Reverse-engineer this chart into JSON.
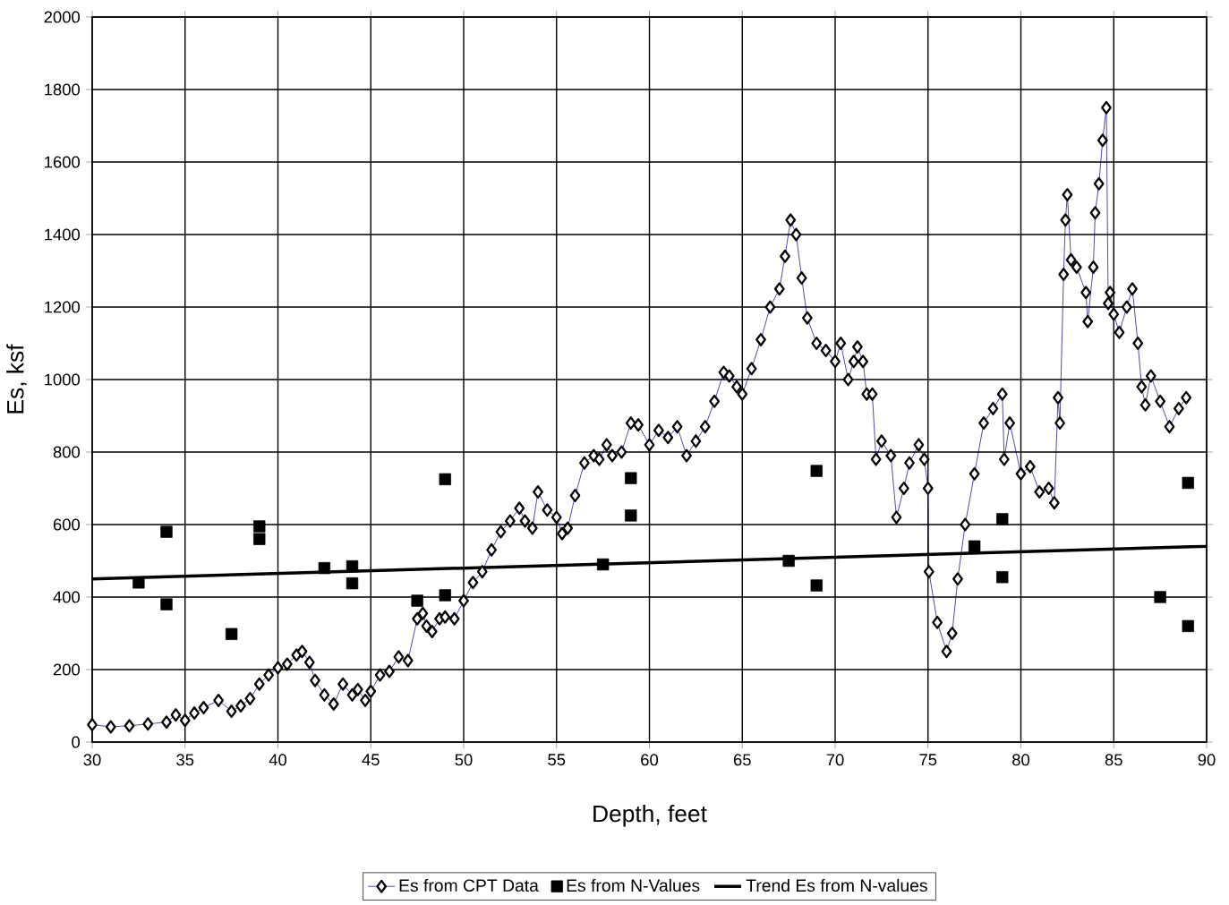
{
  "chart_data": {
    "type": "line",
    "xlabel": "Depth, feet",
    "ylabel": "Es, ksf",
    "xlim": [
      30,
      90
    ],
    "xticks": [
      30,
      35,
      40,
      45,
      50,
      55,
      60,
      65,
      70,
      75,
      80,
      85,
      90
    ],
    "ylim": [
      0,
      2000
    ],
    "yticks": [
      0,
      200,
      400,
      600,
      800,
      1000,
      1200,
      1400,
      1600,
      1800,
      2000
    ],
    "grid": true,
    "legend": "bottom",
    "series": [
      {
        "name": "Es from CPT Data",
        "type": "line",
        "marker": "diamond",
        "color": "#000000",
        "x": [
          30,
          31,
          32,
          33,
          34,
          34.5,
          35,
          35.5,
          36,
          36.8,
          37.5,
          38,
          38.5,
          39,
          39.5,
          40,
          40.5,
          41,
          41.3,
          41.7,
          42,
          42.5,
          43,
          43.5,
          44,
          44.3,
          44.7,
          45,
          45.5,
          46,
          46.5,
          47,
          47.5,
          47.8,
          48,
          48.3,
          48.7,
          49,
          49.5,
          50,
          50.5,
          51,
          51.5,
          52,
          52.5,
          53,
          53.3,
          53.7,
          54,
          54.5,
          55,
          55.3,
          55.6,
          56,
          56.5,
          57,
          57.3,
          57.7,
          58,
          58.5,
          59,
          59.4,
          60,
          60.5,
          61,
          61.5,
          62,
          62.5,
          63,
          63.5,
          64,
          64.3,
          64.7,
          65,
          65.5,
          66,
          66.5,
          67,
          67.3,
          67.6,
          67.9,
          68.2,
          68.5,
          69,
          69.5,
          70,
          70.3,
          70.7,
          71,
          71.2,
          71.5,
          71.7,
          72,
          72.2,
          72.5,
          73,
          73.3,
          73.7,
          74,
          74.5,
          74.8,
          75,
          75.05,
          75.5,
          76,
          76.3,
          76.6,
          77,
          77.5,
          78,
          78.5,
          79,
          79.1,
          79.4,
          80,
          80.5,
          81,
          81.5,
          81.8,
          82,
          82.1,
          82.3,
          82.4,
          82.5,
          82.7,
          83,
          83.5,
          83.6,
          83.9,
          84,
          84.2,
          84.4,
          84.6,
          84.7,
          84.8,
          85,
          85.3,
          85.7,
          86,
          86.3,
          86.5,
          86.7,
          87,
          87.5,
          88,
          88.5,
          88.9
        ],
        "values": [
          48,
          42,
          45,
          50,
          55,
          75,
          60,
          80,
          95,
          115,
          85,
          100,
          120,
          160,
          185,
          205,
          215,
          240,
          250,
          220,
          170,
          130,
          105,
          160,
          130,
          145,
          115,
          140,
          185,
          195,
          235,
          225,
          340,
          355,
          320,
          305,
          340,
          345,
          340,
          390,
          440,
          470,
          530,
          580,
          610,
          645,
          610,
          590,
          690,
          640,
          620,
          575,
          590,
          680,
          770,
          790,
          780,
          820,
          790,
          800,
          880,
          875,
          820,
          860,
          840,
          870,
          790,
          830,
          870,
          940,
          1020,
          1010,
          980,
          960,
          1030,
          1110,
          1200,
          1250,
          1340,
          1440,
          1400,
          1280,
          1170,
          1100,
          1080,
          1050,
          1100,
          1000,
          1050,
          1090,
          1050,
          960,
          960,
          780,
          830,
          790,
          620,
          700,
          770,
          820,
          780,
          700,
          470,
          330,
          250,
          300,
          450,
          600,
          740,
          880,
          920,
          960,
          780,
          880,
          740,
          760,
          690,
          700,
          660,
          950,
          880,
          1290,
          1440,
          1510,
          1330,
          1310,
          1240,
          1160,
          1310,
          1460,
          1540,
          1660,
          1750,
          1210,
          1240,
          1180,
          1130,
          1200,
          1250,
          1100,
          980,
          930,
          1010,
          940,
          870,
          920,
          950
        ]
      },
      {
        "name": "Es from N-Values",
        "type": "scatter",
        "marker": "square",
        "color": "#000000",
        "x": [
          32.5,
          34,
          34,
          37.5,
          39,
          39,
          42.5,
          44,
          44,
          47.5,
          49,
          49,
          57.5,
          59,
          59,
          67.5,
          69,
          69,
          77.5,
          79,
          79,
          87.5,
          89,
          89
        ],
        "values": [
          440,
          580,
          380,
          298,
          595,
          560,
          480,
          485,
          438,
          390,
          405,
          725,
          490,
          728,
          625,
          500,
          748,
          432,
          540,
          615,
          455,
          400,
          320,
          715
        ]
      },
      {
        "name": "Trend Es from N-values",
        "type": "line",
        "marker": "none",
        "color": "#000000",
        "x": [
          30,
          90
        ],
        "values": [
          450,
          540
        ]
      }
    ]
  }
}
